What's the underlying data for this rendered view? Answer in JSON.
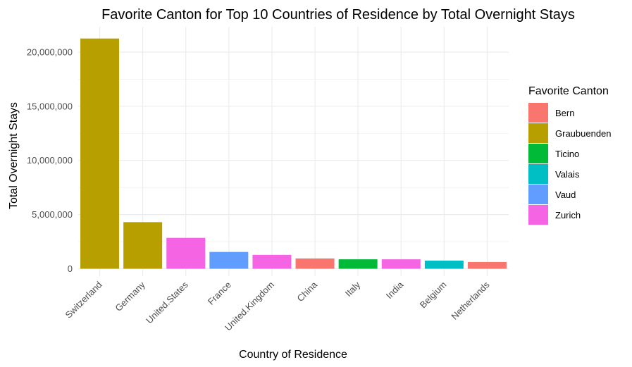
{
  "chart_data": {
    "type": "bar",
    "title": "Favorite Canton for Top 10 Countries of Residence by Total Overnight Stays",
    "xlabel": "Country of Residence",
    "ylabel": "Total Overnight Stays",
    "ylim": [
      0,
      22000000
    ],
    "y_ticks": [
      {
        "value": 0,
        "label": "0"
      },
      {
        "value": 5000000,
        "label": "5,000,000"
      },
      {
        "value": 10000000,
        "label": "10,000,000"
      },
      {
        "value": 15000000,
        "label": "15,000,000"
      },
      {
        "value": 20000000,
        "label": "20,000,000"
      }
    ],
    "grid": true,
    "legend_position": "right",
    "legend_title": "Favorite Canton",
    "legend": [
      {
        "name": "Bern",
        "color": "#F8766D"
      },
      {
        "name": "Graubuenden",
        "color": "#B79F00"
      },
      {
        "name": "Ticino",
        "color": "#00BA38"
      },
      {
        "name": "Valais",
        "color": "#00BFC4"
      },
      {
        "name": "Vaud",
        "color": "#619CFF"
      },
      {
        "name": "Zurich",
        "color": "#F564E3"
      }
    ],
    "categories": [
      "Switzerland",
      "Germany",
      "United.States",
      "France",
      "United.Kingdom",
      "China",
      "Italy",
      "India",
      "Belgium",
      "Netherlands"
    ],
    "values": [
      21250000,
      4300000,
      2850000,
      1550000,
      1280000,
      950000,
      870000,
      870000,
      750000,
      620000
    ],
    "bar_canton": [
      "Graubuenden",
      "Graubuenden",
      "Zurich",
      "Vaud",
      "Zurich",
      "Bern",
      "Ticino",
      "Zurich",
      "Valais",
      "Bern"
    ]
  }
}
